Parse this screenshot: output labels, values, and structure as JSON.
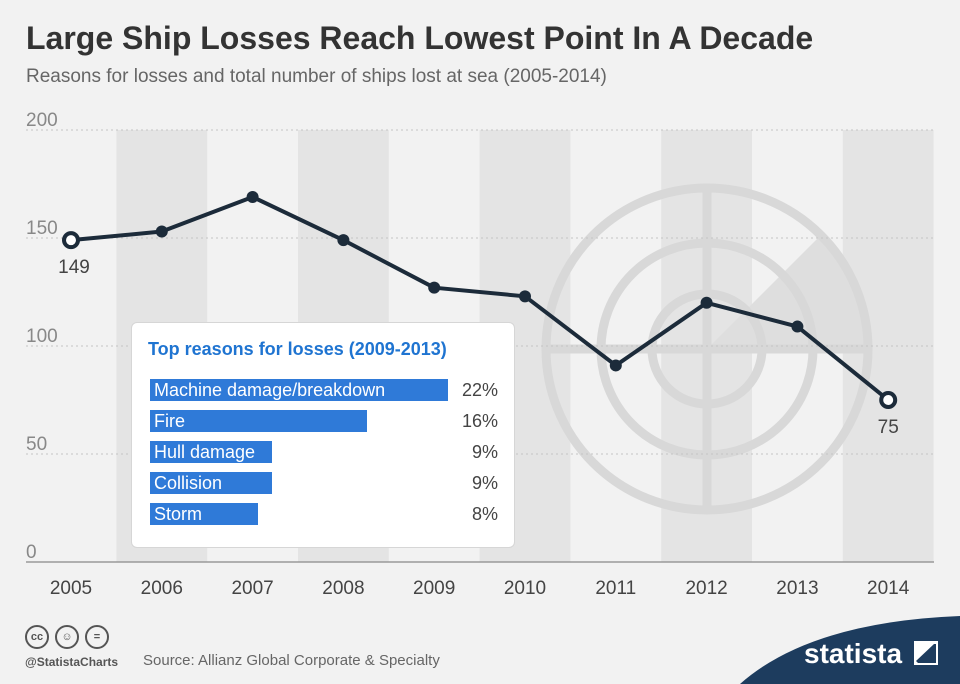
{
  "title": "Large Ship Losses Reach Lowest Point In A Decade",
  "subtitle": "Reasons for losses and total number of ships lost at sea (2005-2014)",
  "chart_data": {
    "type": "line",
    "x": [
      "2005",
      "2006",
      "2007",
      "2008",
      "2009",
      "2010",
      "2011",
      "2012",
      "2013",
      "2014"
    ],
    "values": [
      149,
      153,
      169,
      149,
      127,
      123,
      91,
      120,
      109,
      75
    ],
    "ylim": [
      0,
      200
    ],
    "yticks": [
      "0",
      "50",
      "100",
      "150",
      "200"
    ],
    "point_labels": [
      {
        "index": 0,
        "text": "149"
      },
      {
        "index": 9,
        "text": "75"
      }
    ],
    "line_color": "#1c2b3a",
    "grid": true
  },
  "inset": {
    "title": "Top reasons for losses (2009-2013)",
    "bars": [
      {
        "label": "Machine damage/breakdown",
        "value": 22,
        "value_text": "22%"
      },
      {
        "label": "Fire",
        "value": 16,
        "value_text": "16%"
      },
      {
        "label": "Hull damage",
        "value": 9,
        "value_text": "9%"
      },
      {
        "label": "Collision",
        "value": 9,
        "value_text": "9%"
      },
      {
        "label": "Storm",
        "value": 8,
        "value_text": "8%"
      }
    ],
    "bar_max": 22,
    "bar_color": "#2f7ad8"
  },
  "footer": {
    "handle": "@StatistaCharts",
    "source": "Source: Allianz Global Corporate & Specialty",
    "brand": "statista",
    "icons": [
      "cc-icon",
      "attribution-icon",
      "no-derivatives-icon"
    ],
    "icon_glyphs": [
      "cc",
      "☺",
      "="
    ]
  }
}
